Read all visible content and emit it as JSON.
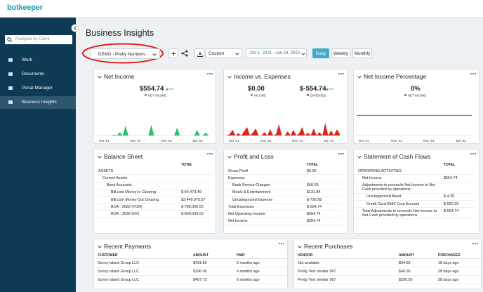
{
  "header": {
    "logo": "botkeeper"
  },
  "sidebar": {
    "search_placeholder": "Navigate by Client",
    "menu": [
      "Work",
      "Documents",
      "Portal Manager",
      "Business Insights"
    ]
  },
  "page": {
    "title": "Business Insights"
  },
  "toolbar": {
    "client": "DEMO - Pretty Numbers",
    "range_type": "Custom",
    "date_range": "Oct 1, 2021 - Jan 24, 2022",
    "intervals": [
      "Daily",
      "Weekly",
      "Monthly"
    ],
    "active_interval": "Daily"
  },
  "widgets": {
    "net_income": {
      "title": "Net Income",
      "value": "$554.74",
      "change": "0%",
      "legend": "NET INCOME",
      "x_labels": [
        "Oct '21",
        "Nov '21",
        "Dec '21",
        "Jan '22"
      ],
      "ylim": [
        0,
        100
      ],
      "values": [
        0,
        0,
        0,
        0,
        0,
        0,
        3,
        0,
        12,
        0,
        35,
        0,
        0,
        0,
        0,
        0,
        0,
        0,
        0,
        38,
        0,
        0,
        0,
        0,
        0,
        0,
        0,
        0,
        28,
        0,
        0,
        0,
        0,
        0,
        0,
        20,
        0,
        0,
        10,
        0
      ]
    },
    "income_vs_expenses": {
      "title": "Income vs. Expenses",
      "income": {
        "value": "$0.00",
        "legend": "INCOME"
      },
      "expenses": {
        "value": "$-554.74",
        "change": "0%",
        "legend": "EXPENSES"
      },
      "x_labels": [
        "Oct '21",
        "Nov '21",
        "Dec '21",
        "Jan '22"
      ],
      "ylim": [
        0,
        100
      ],
      "values": [
        0,
        5,
        20,
        0,
        8,
        0,
        15,
        30,
        0,
        10,
        25,
        0,
        0,
        12,
        0,
        22,
        0,
        5,
        40,
        0,
        0,
        15,
        0,
        20,
        0,
        8,
        30,
        0,
        10,
        0,
        25,
        0,
        12,
        0,
        45,
        0,
        18,
        0,
        22,
        5
      ]
    },
    "net_income_percentage": {
      "title": "Net Income Percentage",
      "value": "0%",
      "legend": "NET INCOME",
      "x_labels": [
        "Oct '21",
        "Nov '21",
        "Dec '21",
        "Jan '22"
      ],
      "ylim": [
        -1,
        0.4
      ],
      "values": [
        0,
        0,
        0,
        0,
        0,
        0,
        0,
        0,
        0,
        0,
        0,
        0,
        0,
        0,
        0,
        0,
        0,
        0,
        0,
        0
      ]
    },
    "balance_sheet": {
      "title": "Balance Sheet",
      "column": "TOTAL",
      "rows": [
        {
          "label": "ASSETS",
          "children": [
            {
              "label": "Current Assets",
              "children": [
                {
                  "label": "Bank Accounts",
                  "children": [
                    {
                      "label": "Bill.com Money In Clearing",
                      "value": "$-64,473.49"
                    },
                    {
                      "label": "Bill.com Money Out Clearing",
                      "value": "$3,449,975.57"
                    },
                    {
                      "label": "BOA - 2622 (YGN)",
                      "value": "$-786,000.00"
                    },
                    {
                      "label": "BOA - 2639 (NY)",
                      "value": "$-660,000.00"
                    }
                  ]
                }
              ]
            }
          ]
        }
      ]
    },
    "profit_and_loss": {
      "title": "Profit and Loss",
      "column": "TOTAL",
      "rows": [
        {
          "label": "Gross Profit",
          "value": "$0.00"
        },
        {
          "label": "Expenses",
          "children": [
            {
              "label": "Bank Service Charges",
              "value": "$40.00"
            },
            {
              "label": "Meals & Entertainment",
              "value": "$131.84"
            },
            {
              "label": "Uncategorized Expense",
              "value": "$-726.58"
            }
          ]
        },
        {
          "label": "Total Expenses",
          "value": "$-554.74"
        },
        {
          "label": "Net Operating Income",
          "value": "$554.74"
        },
        {
          "label": "Net Income",
          "value": "$554.74"
        }
      ]
    },
    "cash_flows": {
      "title": "Statement of Cash Flows",
      "column": "TOTAL",
      "rows": [
        {
          "label": "OPERATING ACTIVITIES",
          "children": [
            {
              "label": "Net Income",
              "value": "$554.74"
            },
            {
              "label": "Adjustments to reconcile Net Income to Net Cash provided by operations:",
              "children": [
                {
                  "label": "Uncategorized Asset",
                  "value": "$-4.35"
                },
                {
                  "label": "Credit Card-6686 Corp Account",
                  "value": "$-550.39"
                }
              ]
            },
            {
              "label": "Total Adjustments to reconcile Net Income to Net Cash provided by operations",
              "value": "$-554.74"
            }
          ]
        }
      ]
    },
    "recent_payments": {
      "title": "Recent Payments",
      "columns": [
        "CUSTOMER",
        "AMOUNT",
        "PAID"
      ],
      "rows": [
        [
          "Sunny Island Group LLC",
          "$431.89",
          "6 months ago"
        ],
        [
          "Sunny Island Group LLC",
          "$336.06",
          "6 months ago"
        ],
        [
          "Sunny Island Group LLC",
          "$407.72",
          "6 months ago"
        ]
      ]
    },
    "recent_purchases": {
      "title": "Recent Purchases",
      "columns": [
        "VENDOR",
        "AMOUNT",
        "PURCHASED"
      ],
      "rows": [
        [
          "Not available",
          "$94.55",
          "18 days ago"
        ],
        [
          "Pretty Test Vendor 967",
          "$40.00",
          "28 days ago"
        ],
        [
          "Pretty Test Vendor 967",
          "$200.00",
          "28 days ago"
        ]
      ]
    }
  }
}
